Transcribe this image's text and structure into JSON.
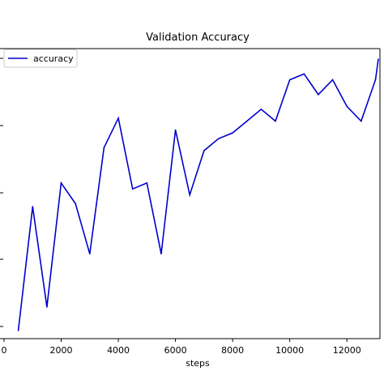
{
  "chart_data": {
    "type": "line",
    "title": "Validation Accuracy",
    "xlabel": "steps",
    "ylabel": "",
    "xlim": [
      0,
      13100
    ],
    "ylim": [
      0,
      1
    ],
    "xticks": [
      0,
      2000,
      4000,
      6000,
      8000,
      10000,
      12000
    ],
    "xtick_labels": [
      "0",
      "2000",
      "4000",
      "6000",
      "8000",
      "10000",
      "12000"
    ],
    "grid": false,
    "legend": "top-left",
    "series": [
      {
        "name": "accuracy",
        "color": "#0000cc",
        "x": [
          500,
          1000,
          1500,
          2000,
          2500,
          3000,
          3500,
          4000,
          4500,
          5000,
          5500,
          6000,
          6500,
          7000,
          7500,
          8000,
          8500,
          9000,
          9500,
          10000,
          10500,
          11000,
          11500,
          12000,
          12500,
          13000,
          13100
        ],
        "y": [
          0.04,
          0.46,
          0.12,
          0.54,
          0.47,
          0.3,
          0.66,
          0.76,
          0.52,
          0.54,
          0.3,
          0.72,
          0.5,
          0.65,
          0.69,
          0.71,
          0.75,
          0.79,
          0.75,
          0.89,
          0.91,
          0.84,
          0.89,
          0.8,
          0.75,
          0.89,
          0.96
        ]
      }
    ]
  }
}
